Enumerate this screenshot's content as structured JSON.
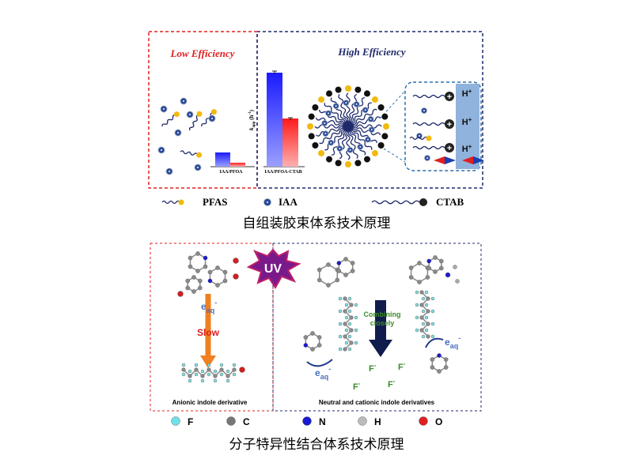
{
  "top_panel": {
    "low_label": "Low Efficiency",
    "high_label": "High Efficiency",
    "axis_label": {
      "base": "k",
      "sub": "app",
      "unit": " (h",
      "sup": "-1",
      "close": ")"
    },
    "bar_labels": [
      "IAA/PFOA",
      "IAA/PFOA-CTAB"
    ],
    "proton_labels": [
      {
        "base": "H",
        "sup": "+"
      },
      {
        "base": "H",
        "sup": "+"
      },
      {
        "base": "H",
        "sup": "+"
      }
    ],
    "legend": [
      "PFAS",
      "IAA",
      "CTAB"
    ],
    "caption": "自组装胶束体系技术原理"
  },
  "bottom_panel": {
    "uv": "UV",
    "electron_labels": [
      {
        "base": "e",
        "sub": "aq",
        "sup": "-"
      },
      {
        "base": "e",
        "sub": "aq",
        "sup": "-"
      },
      {
        "base": "e",
        "sub": "aq",
        "sup": "-"
      }
    ],
    "slow": "Slow",
    "combining": [
      "Combining",
      "closely"
    ],
    "fluoride_labels": [
      {
        "base": "F",
        "sup": "-"
      },
      {
        "base": "F",
        "sup": "-"
      },
      {
        "base": "F",
        "sup": "-"
      },
      {
        "base": "F",
        "sup": "-"
      }
    ],
    "left_label": "Anionic indole derivative",
    "right_label": "Neutral and cationic indole derivatives",
    "legend": [
      "F",
      "C",
      "N",
      "H",
      "O"
    ],
    "caption": "分子特异性结合体系技术原理"
  }
}
